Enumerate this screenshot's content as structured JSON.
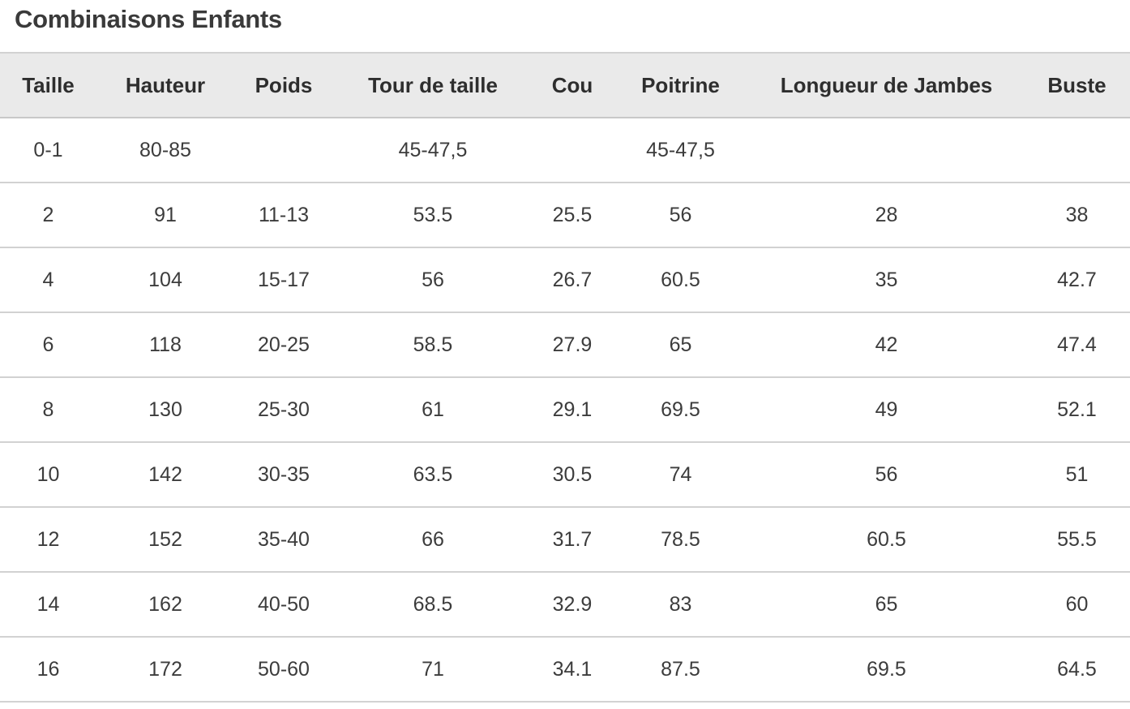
{
  "title": "Combinaisons Enfants",
  "table": {
    "headers": [
      "Taille",
      "Hauteur",
      "Poids",
      "Tour de taille",
      "Cou",
      "Poitrine",
      "Longueur de Jambes",
      "Buste"
    ],
    "rows": [
      [
        "0-1",
        "80-85",
        "",
        "45-47,5",
        "",
        "45-47,5",
        "",
        ""
      ],
      [
        "2",
        "91",
        "11-13",
        "53.5",
        "25.5",
        "56",
        "28",
        "38"
      ],
      [
        "4",
        "104",
        "15-17",
        "56",
        "26.7",
        "60.5",
        "35",
        "42.7"
      ],
      [
        "6",
        "118",
        "20-25",
        "58.5",
        "27.9",
        "65",
        "42",
        "47.4"
      ],
      [
        "8",
        "130",
        "25-30",
        "61",
        "29.1",
        "69.5",
        "49",
        "52.1"
      ],
      [
        "10",
        "142",
        "30-35",
        "63.5",
        "30.5",
        "74",
        "56",
        "51"
      ],
      [
        "12",
        "152",
        "35-40",
        "66",
        "31.7",
        "78.5",
        "60.5",
        "55.5"
      ],
      [
        "14",
        "162",
        "40-50",
        "68.5",
        "32.9",
        "83",
        "65",
        "60"
      ],
      [
        "16",
        "172",
        "50-60",
        "71",
        "34.1",
        "87.5",
        "69.5",
        "64.5"
      ]
    ]
  },
  "colors": {
    "header_background": "#eaeaea",
    "row_divider": "#d2d2d2",
    "text": "#333333"
  }
}
